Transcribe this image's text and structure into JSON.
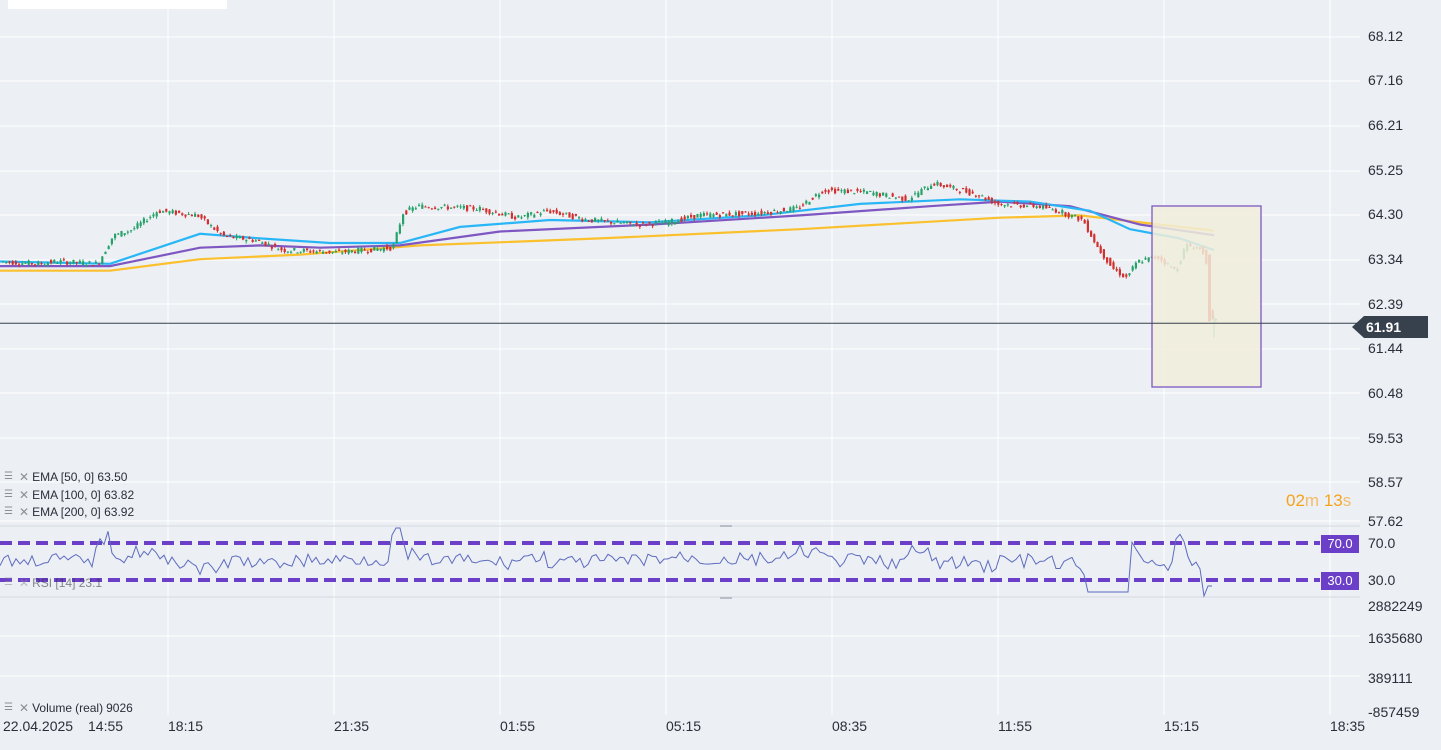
{
  "price_axis": [
    "68.12",
    "67.16",
    "66.21",
    "65.25",
    "64.30",
    "63.34",
    "62.39",
    "61.44",
    "60.48",
    "59.53",
    "58.57",
    "57.62"
  ],
  "current_price": "61.91",
  "rsi_axis": [
    "70.0",
    "30.0"
  ],
  "rsi_tags": [
    "70.0",
    "30.0"
  ],
  "volume_axis": [
    "2882249",
    "1635680",
    "389111",
    "-857459"
  ],
  "time_axis": [
    "22.04.2025",
    "14:55",
    "18:15",
    "21:35",
    "01:55",
    "05:15",
    "08:35",
    "11:55",
    "15:15",
    "18:35"
  ],
  "timer": {
    "min_val": "02",
    "min_unit": "m",
    "sec_val": "13",
    "sec_unit": "s"
  },
  "legends": {
    "ema50": "EMA [50, 0] 63.50",
    "ema100": "EMA [100, 0] 63.82",
    "ema200": "EMA [200, 0] 63.92",
    "rsi": "RSI [14] 23.1",
    "volume_name": "Volume",
    "volume_sub": "(real)",
    "volume_val": "9026"
  },
  "colors": {
    "ema50": "#29b6f6",
    "ema100": "#7e57c2",
    "ema200": "#fbc02d",
    "up": "#26a269",
    "down": "#d32f2f",
    "rsi": "#5c6bc0",
    "rsi_band": "#6b3fc8",
    "price_line": "#37404d"
  }
}
